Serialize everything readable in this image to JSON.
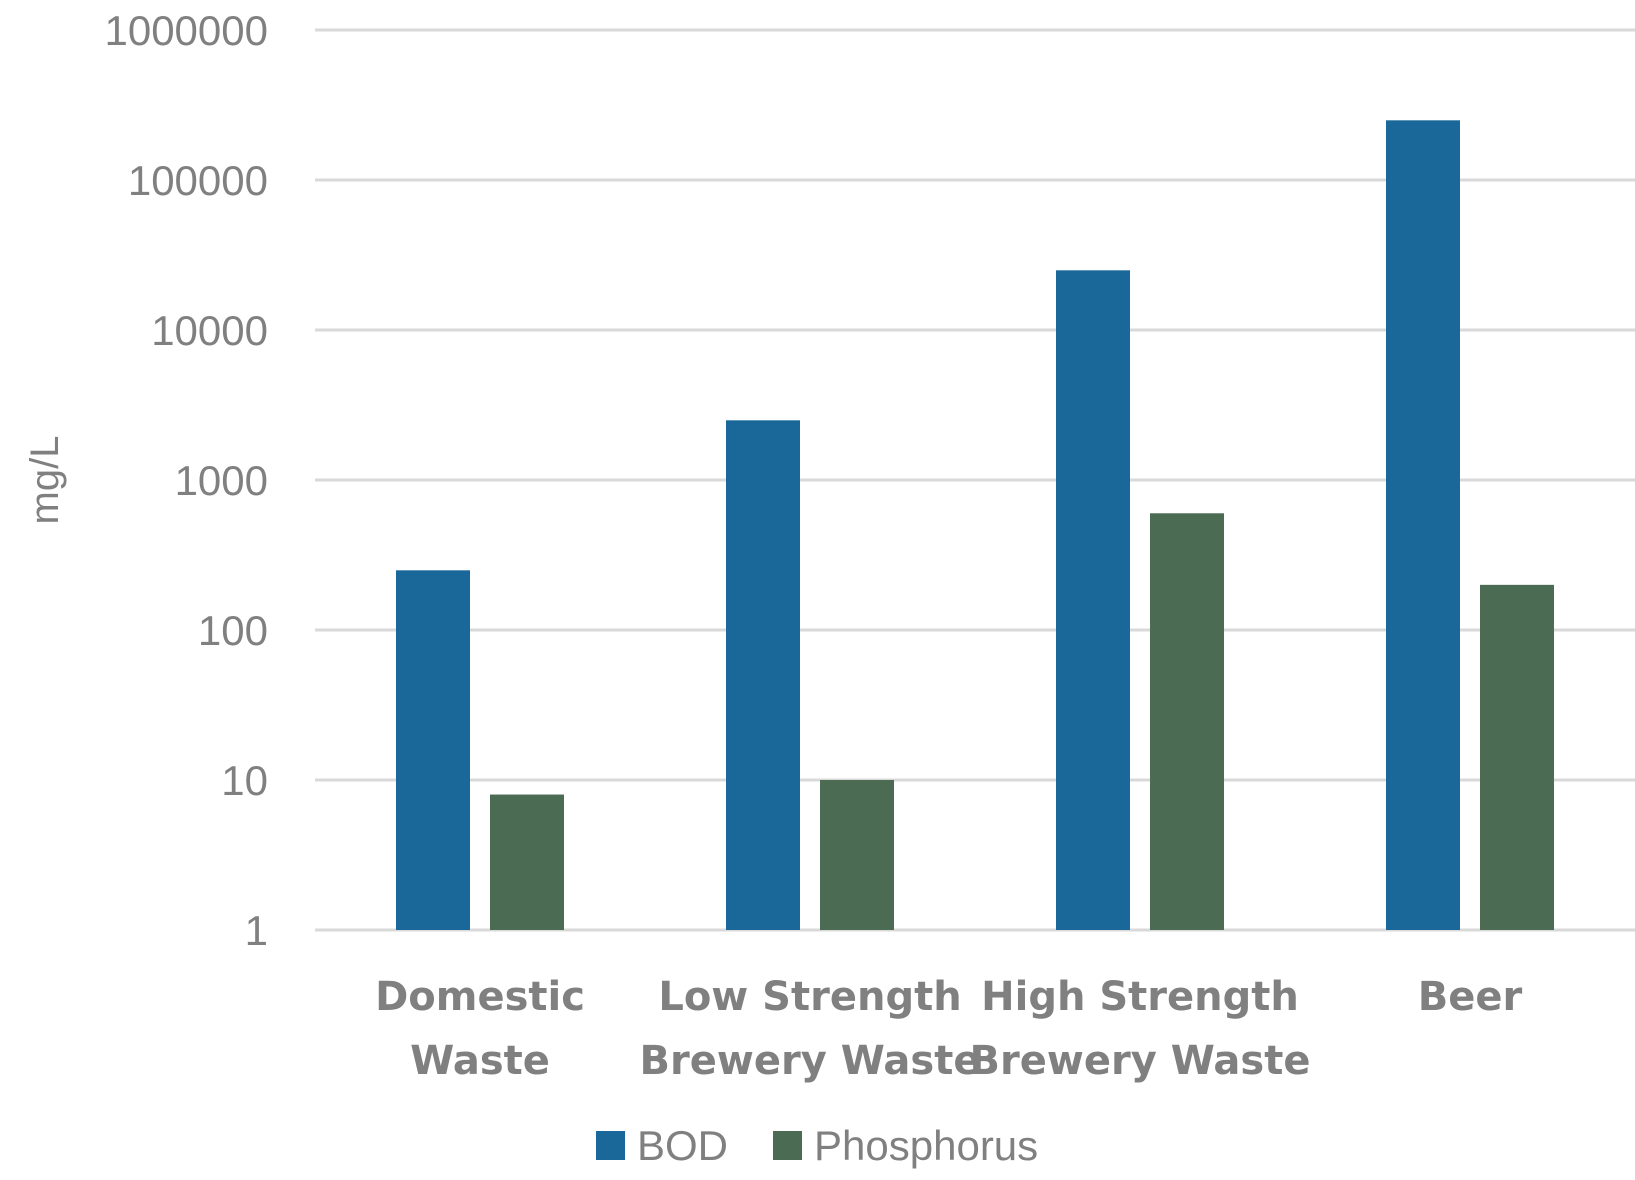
{
  "chart_data": {
    "type": "bar",
    "yscale": "log",
    "ylabel": "mg/L",
    "ylim": [
      1,
      1000000
    ],
    "yticks": [
      "1000000",
      "100000",
      "10000",
      "1000",
      "100",
      "10",
      "1"
    ],
    "categories": [
      [
        "Domestic",
        "Waste"
      ],
      [
        "Low Strength",
        "Brewery Waste"
      ],
      [
        "High Strength",
        "Brewery Waste"
      ],
      [
        "Beer"
      ]
    ],
    "series": [
      {
        "name": "BOD",
        "color": "#1a6899",
        "values": [
          250,
          2500,
          25000,
          250000
        ]
      },
      {
        "name": "Phosphorus",
        "color": "#4c6b53",
        "values": [
          8,
          10,
          600,
          200
        ]
      }
    ],
    "grid": true,
    "legend": "bottom"
  }
}
